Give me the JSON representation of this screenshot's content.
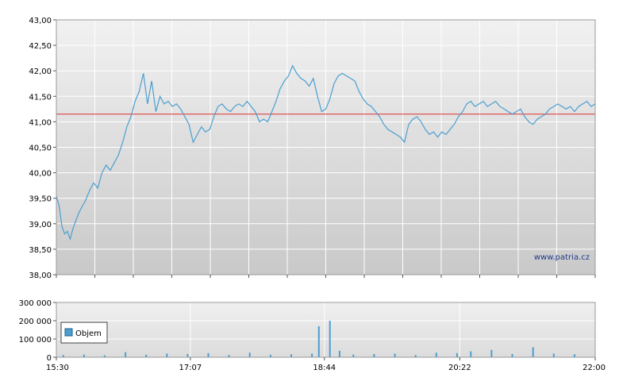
{
  "chart_data": [
    {
      "type": "line",
      "y_ticks": [
        "43,00",
        "42,50",
        "42,00",
        "41,50",
        "41,00",
        "40,50",
        "40,00",
        "39,50",
        "39,00",
        "38,50",
        "38,00"
      ],
      "ylim": [
        38,
        43
      ],
      "reference_line": 41.15,
      "reference_color": "#e03030",
      "line_color": "#4a9fd0",
      "grid": true,
      "watermark": "www.patria.cz",
      "x": [
        "15:30",
        "15:32",
        "15:34",
        "15:36",
        "15:38",
        "15:40",
        "15:42",
        "15:44",
        "15:46",
        "15:48",
        "15:51",
        "15:54",
        "15:57",
        "16:00",
        "16:03",
        "16:06",
        "16:09",
        "16:12",
        "16:15",
        "16:18",
        "16:21",
        "16:24",
        "16:27",
        "16:30",
        "16:33",
        "16:36",
        "16:39",
        "16:42",
        "16:45",
        "16:48",
        "16:51",
        "16:54",
        "16:57",
        "17:00",
        "17:03",
        "17:06",
        "17:09",
        "17:12",
        "17:15",
        "17:18",
        "17:21",
        "17:24",
        "17:27",
        "17:30",
        "17:33",
        "17:36",
        "17:39",
        "17:42",
        "17:45",
        "17:48",
        "17:51",
        "17:54",
        "17:57",
        "18:00",
        "18:03",
        "18:06",
        "18:09",
        "18:12",
        "18:15",
        "18:18",
        "18:21",
        "18:24",
        "18:27",
        "18:30",
        "18:33",
        "18:36",
        "18:39",
        "18:42",
        "18:45",
        "18:48",
        "18:51",
        "18:54",
        "18:57",
        "19:00",
        "19:03",
        "19:06",
        "19:09",
        "19:12",
        "19:15",
        "19:18",
        "19:21",
        "19:24",
        "19:27",
        "19:30",
        "19:33",
        "19:36",
        "19:39",
        "19:42",
        "19:45",
        "19:48",
        "19:51",
        "19:54",
        "19:57",
        "20:00",
        "20:03",
        "20:06",
        "20:09",
        "20:12",
        "20:15",
        "20:18",
        "20:21",
        "20:24",
        "20:27",
        "20:30",
        "20:33",
        "20:36",
        "20:39",
        "20:42",
        "20:45",
        "20:48",
        "20:51",
        "20:54",
        "20:57",
        "21:00",
        "21:03",
        "21:06",
        "21:09",
        "21:12",
        "21:15",
        "21:18",
        "21:21",
        "21:24",
        "21:27",
        "21:30",
        "21:33",
        "21:36",
        "21:39",
        "21:42",
        "21:45",
        "21:48",
        "21:51",
        "21:54",
        "21:57",
        "22:00"
      ],
      "values": [
        39.55,
        39.35,
        38.95,
        38.8,
        38.85,
        38.7,
        38.9,
        39.05,
        39.2,
        39.3,
        39.45,
        39.65,
        39.8,
        39.7,
        40.0,
        40.15,
        40.05,
        40.2,
        40.35,
        40.6,
        40.9,
        41.1,
        41.4,
        41.6,
        41.95,
        41.35,
        41.8,
        41.2,
        41.5,
        41.35,
        41.4,
        41.3,
        41.35,
        41.25,
        41.1,
        40.95,
        40.6,
        40.75,
        40.9,
        40.8,
        40.85,
        41.1,
        41.3,
        41.35,
        41.25,
        41.2,
        41.3,
        41.35,
        41.3,
        41.4,
        41.3,
        41.2,
        41.0,
        41.05,
        41.0,
        41.2,
        41.4,
        41.65,
        41.8,
        41.9,
        42.1,
        41.95,
        41.85,
        41.8,
        41.7,
        41.85,
        41.5,
        41.2,
        41.25,
        41.45,
        41.75,
        41.9,
        41.95,
        41.9,
        41.85,
        41.8,
        41.6,
        41.45,
        41.35,
        41.3,
        41.2,
        41.1,
        40.95,
        40.85,
        40.8,
        40.75,
        40.7,
        40.6,
        40.95,
        41.05,
        41.1,
        41.0,
        40.85,
        40.75,
        40.8,
        40.7,
        40.8,
        40.75,
        40.85,
        40.95,
        41.1,
        41.2,
        41.35,
        41.4,
        41.3,
        41.35,
        41.4,
        41.3,
        41.35,
        41.4,
        41.3,
        41.25,
        41.2,
        41.15,
        41.2,
        41.25,
        41.1,
        41.0,
        40.95,
        41.05,
        41.1,
        41.15,
        41.25,
        41.3,
        41.35,
        41.3,
        41.25,
        41.3,
        41.2,
        41.3,
        41.35,
        41.4,
        41.3,
        41.35
      ]
    },
    {
      "type": "bar",
      "y_ticks": [
        "300 000",
        "200 000",
        "100 000",
        "0"
      ],
      "ylim": [
        0,
        300000
      ],
      "x_ticks": [
        "15:30",
        "17:07",
        "18:44",
        "20:22",
        "22:00"
      ],
      "xlim": [
        "15:30",
        "22:00"
      ],
      "legend": "Objem",
      "bar_color": "#4a9fd0",
      "grid": true,
      "x": [
        "15:35",
        "15:50",
        "16:05",
        "16:20",
        "16:35",
        "16:50",
        "17:05",
        "17:20",
        "17:35",
        "17:50",
        "18:05",
        "18:20",
        "18:35",
        "18:40",
        "18:48",
        "18:55",
        "19:05",
        "19:20",
        "19:35",
        "19:50",
        "20:05",
        "20:20",
        "20:30",
        "20:45",
        "21:00",
        "21:15",
        "21:30",
        "21:45"
      ],
      "values": [
        12000,
        15000,
        10000,
        28000,
        14000,
        20000,
        18000,
        22000,
        12000,
        25000,
        14000,
        16000,
        20000,
        170000,
        200000,
        35000,
        15000,
        18000,
        20000,
        12000,
        25000,
        22000,
        32000,
        40000,
        18000,
        55000,
        20000,
        16000
      ]
    }
  ]
}
